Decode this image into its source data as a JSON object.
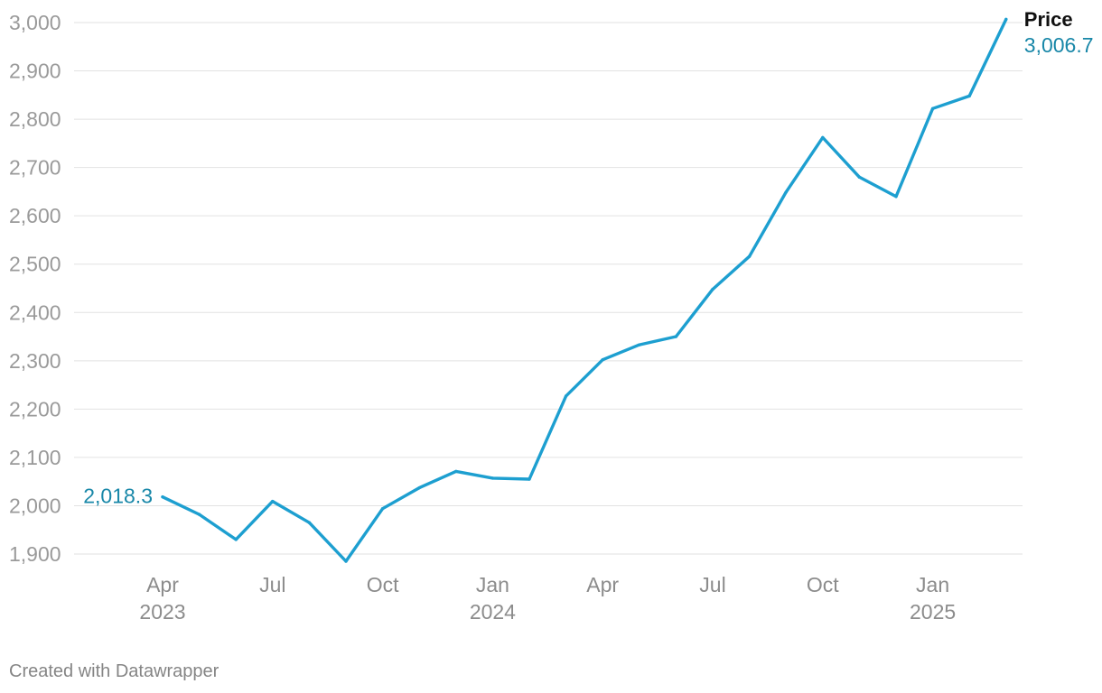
{
  "chart_data": {
    "type": "line",
    "series": [
      {
        "name": "Price",
        "color": "#1d9fd0",
        "x": [
          "2023-04",
          "2023-05",
          "2023-06",
          "2023-07",
          "2023-08",
          "2023-09",
          "2023-10",
          "2023-11",
          "2023-12",
          "2024-01",
          "2024-02",
          "2024-03",
          "2024-04",
          "2024-05",
          "2024-06",
          "2024-07",
          "2024-08",
          "2024-09",
          "2024-10",
          "2024-11",
          "2024-12",
          "2025-01",
          "2025-02",
          "2025-03"
        ],
        "values": [
          2018.3,
          1982,
          1930,
          2009,
          1965,
          1885,
          1994,
          2037,
          2071,
          2057,
          2055,
          2227,
          2302,
          2333,
          2350,
          2448,
          2516,
          2649,
          2762,
          2680,
          2640,
          2822,
          2848,
          3006.7
        ]
      }
    ],
    "start_label": "2,018.3",
    "end_label": "3,006.7",
    "label_color": "#1887a8",
    "ylim": [
      1900,
      3000
    ],
    "yticks": [
      {
        "value": 3000,
        "label": "3,000"
      },
      {
        "value": 2900,
        "label": "2,900"
      },
      {
        "value": 2800,
        "label": "2,800"
      },
      {
        "value": 2700,
        "label": "2,700"
      },
      {
        "value": 2600,
        "label": "2,600"
      },
      {
        "value": 2500,
        "label": "2,500"
      },
      {
        "value": 2400,
        "label": "2,400"
      },
      {
        "value": 2300,
        "label": "2,300"
      },
      {
        "value": 2200,
        "label": "2,200"
      },
      {
        "value": 2100,
        "label": "2,100"
      },
      {
        "value": 2000,
        "label": "2,000"
      },
      {
        "value": 1900,
        "label": "1,900"
      }
    ],
    "xticks": [
      {
        "at": "2023-04",
        "lines": [
          "Apr",
          "2023"
        ]
      },
      {
        "at": "2023-07",
        "lines": [
          "Jul"
        ]
      },
      {
        "at": "2023-10",
        "lines": [
          "Oct"
        ]
      },
      {
        "at": "2024-01",
        "lines": [
          "Jan",
          "2024"
        ]
      },
      {
        "at": "2024-04",
        "lines": [
          "Apr"
        ]
      },
      {
        "at": "2024-07",
        "lines": [
          "Jul"
        ]
      },
      {
        "at": "2024-10",
        "lines": [
          "Oct"
        ]
      },
      {
        "at": "2025-01",
        "lines": [
          "Jan",
          "2025"
        ]
      }
    ],
    "grid": true,
    "legend": "none"
  },
  "footer": {
    "credit": "Created with Datawrapper"
  }
}
